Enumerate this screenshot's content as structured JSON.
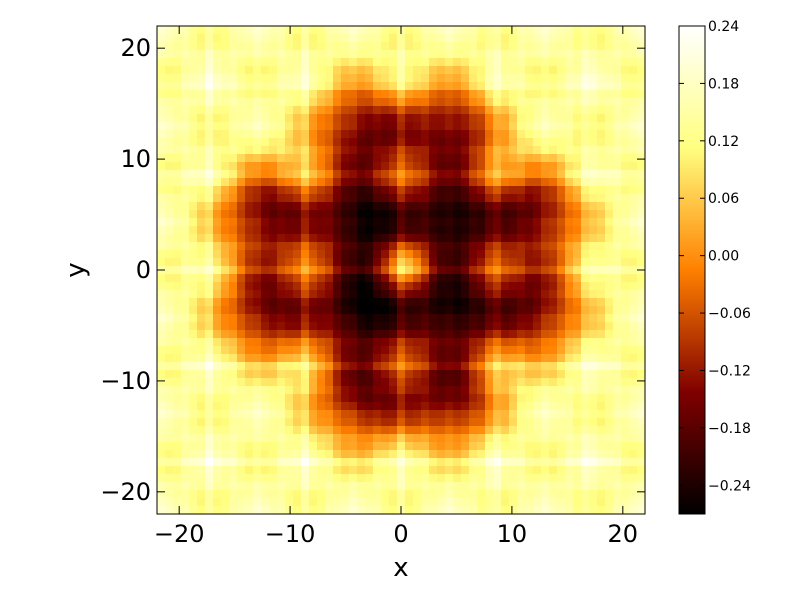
{
  "chart_data": {
    "type": "heatmap",
    "title": "",
    "xlabel": "x",
    "ylabel": "y",
    "xlim": [
      -22,
      22
    ],
    "ylim": [
      -22,
      22
    ],
    "x_ticks": [
      -20,
      -10,
      0,
      10,
      20
    ],
    "y_ticks": [
      -20,
      -10,
      0,
      10,
      20
    ],
    "x_tick_labels": [
      "−20",
      "−10",
      "0",
      "10",
      "20"
    ],
    "y_tick_labels": [
      "−20",
      "−10",
      "0",
      "10",
      "20"
    ],
    "colormap": "afmhot",
    "grid": false,
    "colorbar": {
      "vmin": -0.27,
      "vmax": 0.24,
      "ticks": [
        0.24,
        0.18,
        0.12,
        0.06,
        0.0,
        -0.06,
        -0.12,
        -0.18,
        -0.24
      ],
      "tick_labels": [
        "0.24",
        "0.18",
        "0.12",
        "0.06",
        "0.00",
        "−0.06",
        "−0.12",
        "−0.18",
        "−0.24"
      ]
    },
    "features": {
      "dark_minima": [
        {
          "x": -3.5,
          "y": 4.5,
          "value": -0.25
        },
        {
          "x": 4.5,
          "y": 4.5,
          "value": -0.23
        },
        {
          "x": -3.5,
          "y": -3.5,
          "value": -0.26
        },
        {
          "x": 4.5,
          "y": -3.5,
          "value": -0.23
        },
        {
          "x": -12,
          "y": 5,
          "value": -0.17
        },
        {
          "x": -12,
          "y": -3.5,
          "value": -0.17
        },
        {
          "x": 12,
          "y": 5,
          "value": -0.16
        },
        {
          "x": 12,
          "y": -3.5,
          "value": -0.16
        },
        {
          "x": -3.5,
          "y": 12.5,
          "value": -0.16
        },
        {
          "x": 4.5,
          "y": 12.5,
          "value": -0.16
        },
        {
          "x": -3.5,
          "y": -11.5,
          "value": -0.16
        },
        {
          "x": 4.5,
          "y": -11.5,
          "value": -0.16
        }
      ],
      "center_peak": {
        "x": 0.5,
        "y": 0.5,
        "value": 0.06
      },
      "background_level": 0.14
    }
  }
}
